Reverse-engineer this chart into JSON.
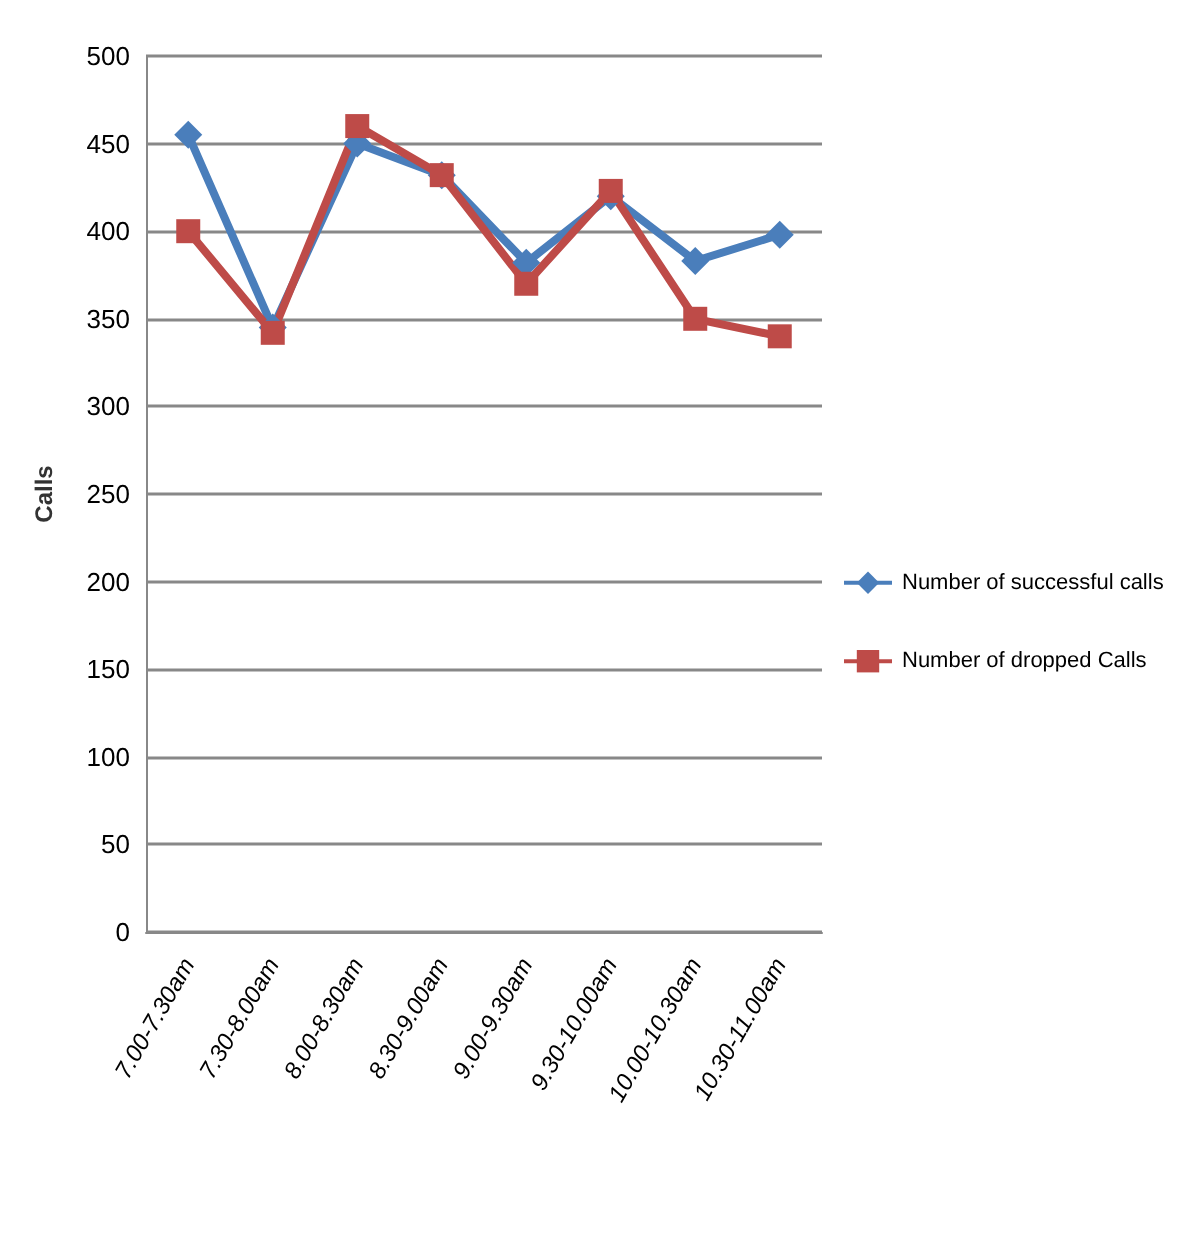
{
  "chart_data": {
    "type": "line",
    "ylabel": "Calls",
    "categories": [
      "7.00-7.30am",
      "7.30-8.00am",
      "8.00-8.30am",
      "8.30-9.00am",
      "9.00-9.30am",
      "9.30-10.00am",
      "10.00-10.30am",
      "10.30-11.00am"
    ],
    "series": [
      {
        "name": "Number of successful calls",
        "color": "#4a7ebb",
        "marker": "diamond",
        "values": [
          455,
          345,
          450,
          432,
          382,
          420,
          383,
          398
        ]
      },
      {
        "name": "Number of dropped Calls",
        "color": "#be4b48",
        "marker": "square",
        "values": [
          400,
          342,
          460,
          432,
          370,
          423,
          350,
          340
        ]
      }
    ],
    "ylim": [
      0,
      500
    ],
    "yticks": [
      0,
      50,
      100,
      150,
      200,
      250,
      300,
      350,
      400,
      450,
      500
    ],
    "grid": "y",
    "legend": "right"
  }
}
